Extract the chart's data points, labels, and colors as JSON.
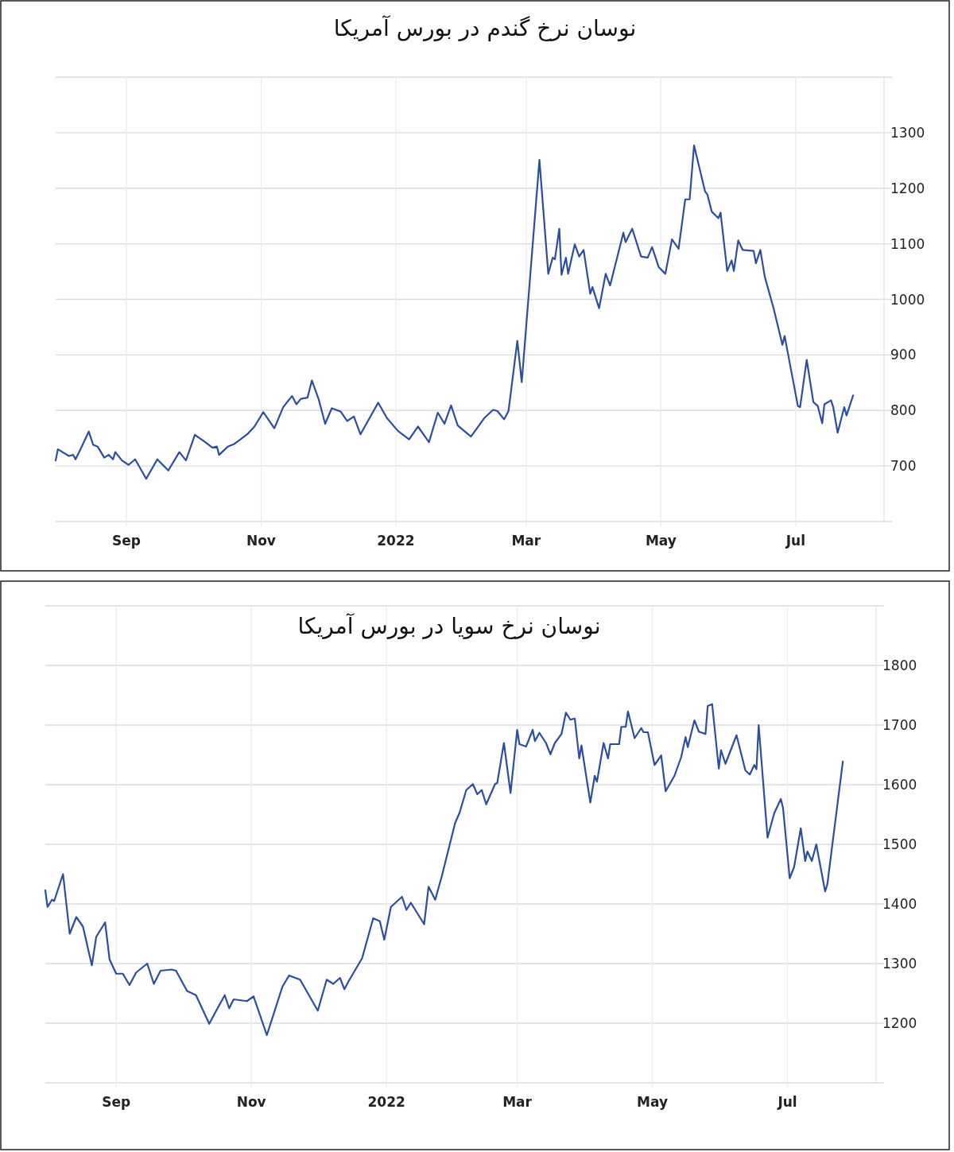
{
  "chart_data": [
    {
      "type": "line",
      "title": "نوسان نرخ گندم در بورس آمریکا",
      "x": [
        "2021-07-31",
        "2021-08-01",
        "2021-08-06",
        "2021-08-08",
        "2021-08-09",
        "2021-08-11",
        "2021-08-15",
        "2021-08-17",
        "2021-08-19",
        "2021-08-22",
        "2021-08-24",
        "2021-08-26",
        "2021-08-27",
        "2021-08-30",
        "2021-09-02",
        "2021-09-05",
        "2021-09-10",
        "2021-09-15",
        "2021-09-20",
        "2021-09-25",
        "2021-09-28",
        "2021-10-02",
        "2021-10-06",
        "2021-10-10",
        "2021-10-12",
        "2021-10-13",
        "2021-10-17",
        "2021-10-20",
        "2021-10-26",
        "2021-10-29",
        "2021-11-02",
        "2021-11-07",
        "2021-11-11",
        "2021-11-15",
        "2021-11-17",
        "2021-11-19",
        "2021-11-22",
        "2021-11-24",
        "2021-11-27",
        "2021-11-30",
        "2021-12-03",
        "2021-12-07",
        "2021-12-10",
        "2021-12-13",
        "2021-12-16",
        "2021-12-24",
        "2021-12-28",
        "2022-01-02",
        "2022-01-07",
        "2022-01-11",
        "2022-01-16",
        "2022-01-20",
        "2022-01-23",
        "2022-01-26",
        "2022-01-29",
        "2022-02-01",
        "2022-02-04",
        "2022-02-10",
        "2022-02-14",
        "2022-02-16",
        "2022-02-19",
        "2022-02-21",
        "2022-02-25",
        "2022-02-27",
        "2022-03-07",
        "2022-03-11",
        "2022-03-13",
        "2022-03-14",
        "2022-03-16",
        "2022-03-17",
        "2022-03-19",
        "2022-03-20",
        "2022-03-23",
        "2022-03-25",
        "2022-03-27",
        "2022-03-30",
        "2022-03-31",
        "2022-04-03",
        "2022-04-06",
        "2022-04-08",
        "2022-04-14",
        "2022-04-15",
        "2022-04-18",
        "2022-04-22",
        "2022-04-25",
        "2022-04-27",
        "2022-04-30",
        "2022-05-03",
        "2022-05-06",
        "2022-05-09",
        "2022-05-12",
        "2022-05-14",
        "2022-05-16",
        "2022-05-21",
        "2022-05-22",
        "2022-05-24",
        "2022-05-27",
        "2022-05-28",
        "2022-05-31",
        "2022-06-02",
        "2022-06-03",
        "2022-06-05",
        "2022-06-07",
        "2022-06-12",
        "2022-06-13",
        "2022-06-15",
        "2022-06-17",
        "2022-06-21",
        "2022-06-25",
        "2022-06-26",
        "2022-07-02",
        "2022-07-03",
        "2022-07-06",
        "2022-07-09",
        "2022-07-11",
        "2022-07-13",
        "2022-07-14",
        "2022-07-17",
        "2022-07-18",
        "2022-07-20",
        "2022-07-23",
        "2022-07-24",
        "2022-07-27"
      ],
      "series": [
        {
          "color": "#2b4ea2",
          "values": [
            710,
            730,
            718,
            720,
            712,
            728,
            762,
            738,
            735,
            715,
            720,
            712,
            725,
            710,
            702,
            712,
            677,
            712,
            692,
            725,
            710,
            756,
            745,
            733,
            735,
            720,
            735,
            740,
            758,
            771,
            797,
            768,
            806,
            826,
            811,
            821,
            823,
            854,
            821,
            776,
            804,
            798,
            781,
            789,
            757,
            814,
            786,
            763,
            748,
            771,
            743,
            796,
            776,
            809,
            773,
            763,
            753,
            786,
            801,
            799,
            784,
            799,
            925,
            851,
            1251,
            1046,
            1075,
            1072,
            1127,
            1044,
            1075,
            1046,
            1099,
            1077,
            1089,
            1010,
            1022,
            984,
            1046,
            1025,
            1120,
            1103,
            1127,
            1077,
            1075,
            1094,
            1058,
            1046,
            1108,
            1091,
            1180,
            1180,
            1277,
            1194,
            1189,
            1158,
            1146,
            1156,
            1051,
            1070,
            1051,
            1106,
            1089,
            1087,
            1065,
            1089,
            1041,
            984,
            918,
            934,
            808,
            806,
            891,
            815,
            808,
            777,
            811,
            818,
            806,
            760,
            806,
            791,
            827
          ]
        }
      ],
      "xlim": [
        "2021-07-31",
        "2022-08-10"
      ],
      "xticks": [
        {
          "value": "2021-09-01",
          "label": "Sep"
        },
        {
          "value": "2021-11-01",
          "label": "Nov"
        },
        {
          "value": "2022-01-01",
          "label": "2022"
        },
        {
          "value": "2022-03-01",
          "label": "Mar"
        },
        {
          "value": "2022-05-01",
          "label": "May"
        },
        {
          "value": "2022-07-01",
          "label": "Jul"
        }
      ],
      "ylim": [
        600,
        1400
      ],
      "yticks": [
        {
          "value": 600,
          "label": null
        },
        700,
        800,
        900,
        1000,
        1100,
        1200,
        1300,
        {
          "value": 1400,
          "label": null
        }
      ],
      "grid": true
    },
    {
      "type": "line",
      "title": "نوسان نرخ سویا در بورس آمریکا",
      "x": [
        "2021-07-31",
        "2021-08-01",
        "2021-08-03",
        "2021-08-04",
        "2021-08-08",
        "2021-08-11",
        "2021-08-14",
        "2021-08-17",
        "2021-08-21",
        "2021-08-23",
        "2021-08-27",
        "2021-08-29",
        "2021-09-01",
        "2021-09-04",
        "2021-09-07",
        "2021-09-10",
        "2021-09-15",
        "2021-09-18",
        "2021-09-21",
        "2021-09-26",
        "2021-09-28",
        "2021-10-03",
        "2021-10-07",
        "2021-10-13",
        "2021-10-16",
        "2021-10-20",
        "2021-10-22",
        "2021-10-24",
        "2021-10-30",
        "2021-11-02",
        "2021-11-08",
        "2021-11-15",
        "2021-11-18",
        "2021-11-23",
        "2021-12-01",
        "2021-12-05",
        "2021-12-08",
        "2021-12-11",
        "2021-12-13",
        "2021-12-15",
        "2021-12-21",
        "2021-12-26",
        "2021-12-29",
        "2021-12-31",
        "2022-01-03",
        "2022-01-08",
        "2022-01-10",
        "2022-01-12",
        "2022-01-18",
        "2022-01-20",
        "2022-01-23",
        "2022-01-26",
        "2022-02-01",
        "2022-02-03",
        "2022-02-06",
        "2022-02-09",
        "2022-02-11",
        "2022-02-13",
        "2022-02-15",
        "2022-02-19",
        "2022-02-20",
        "2022-02-23",
        "2022-02-26",
        "2022-03-01",
        "2022-03-02",
        "2022-03-05",
        "2022-03-08",
        "2022-03-09",
        "2022-03-11",
        "2022-03-14",
        "2022-03-16",
        "2022-03-18",
        "2022-03-21",
        "2022-03-23",
        "2022-03-25",
        "2022-03-27",
        "2022-03-29",
        "2022-03-30",
        "2022-04-03",
        "2022-04-05",
        "2022-04-06",
        "2022-04-09",
        "2022-04-11",
        "2022-04-12",
        "2022-04-16",
        "2022-04-17",
        "2022-04-19",
        "2022-04-20",
        "2022-04-23",
        "2022-04-26",
        "2022-04-27",
        "2022-04-29",
        "2022-05-02",
        "2022-05-05",
        "2022-05-07",
        "2022-05-11",
        "2022-05-14",
        "2022-05-16",
        "2022-05-17",
        "2022-05-20",
        "2022-05-22",
        "2022-05-25",
        "2022-05-26",
        "2022-05-28",
        "2022-05-31",
        "2022-06-01",
        "2022-06-03",
        "2022-06-08",
        "2022-06-12",
        "2022-06-14",
        "2022-06-16",
        "2022-06-17",
        "2022-06-18",
        "2022-06-22",
        "2022-06-25",
        "2022-06-28",
        "2022-06-29",
        "2022-07-02",
        "2022-07-04",
        "2022-07-07",
        "2022-07-09",
        "2022-07-10",
        "2022-07-12",
        "2022-07-14",
        "2022-07-18",
        "2022-07-19",
        "2022-07-26"
      ],
      "series": [
        {
          "color": "#2b4ea2",
          "values": [
            1423,
            1395,
            1407,
            1405,
            1450,
            1350,
            1378,
            1362,
            1297,
            1345,
            1369,
            1307,
            1283,
            1283,
            1264,
            1285,
            1300,
            1266,
            1288,
            1290,
            1288,
            1254,
            1247,
            1199,
            1220,
            1247,
            1225,
            1240,
            1237,
            1245,
            1180,
            1261,
            1280,
            1273,
            1221,
            1273,
            1266,
            1276,
            1257,
            1271,
            1309,
            1376,
            1371,
            1340,
            1395,
            1412,
            1390,
            1402,
            1366,
            1429,
            1407,
            1447,
            1536,
            1553,
            1591,
            1601,
            1584,
            1591,
            1567,
            1601,
            1603,
            1670,
            1586,
            1692,
            1668,
            1664,
            1692,
            1673,
            1687,
            1670,
            1651,
            1670,
            1685,
            1721,
            1709,
            1711,
            1644,
            1666,
            1570,
            1615,
            1605,
            1670,
            1644,
            1668,
            1668,
            1697,
            1697,
            1723,
            1678,
            1695,
            1688,
            1688,
            1633,
            1649,
            1589,
            1615,
            1646,
            1680,
            1663,
            1708,
            1689,
            1685,
            1732,
            1735,
            1627,
            1658,
            1635,
            1683,
            1624,
            1617,
            1633,
            1626,
            1700,
            1511,
            1552,
            1576,
            1561,
            1443,
            1462,
            1527,
            1472,
            1488,
            1472,
            1500,
            1421,
            1433,
            1639
          ]
        }
      ],
      "xlim": [
        "2021-07-31",
        "2022-08-10"
      ],
      "xticks": [
        {
          "value": "2021-09-01",
          "label": "Sep"
        },
        {
          "value": "2021-11-01",
          "label": "Nov"
        },
        {
          "value": "2022-01-01",
          "label": "2022"
        },
        {
          "value": "2022-03-01",
          "label": "Mar"
        },
        {
          "value": "2022-05-01",
          "label": "May"
        },
        {
          "value": "2022-07-01",
          "label": "Jul"
        }
      ],
      "ylim": [
        1100,
        1900
      ],
      "yticks": [
        {
          "value": 1100,
          "label": null
        },
        1200,
        1300,
        1400,
        1500,
        1600,
        1700,
        1800,
        {
          "value": 1900,
          "label": null
        }
      ],
      "grid": true
    }
  ]
}
